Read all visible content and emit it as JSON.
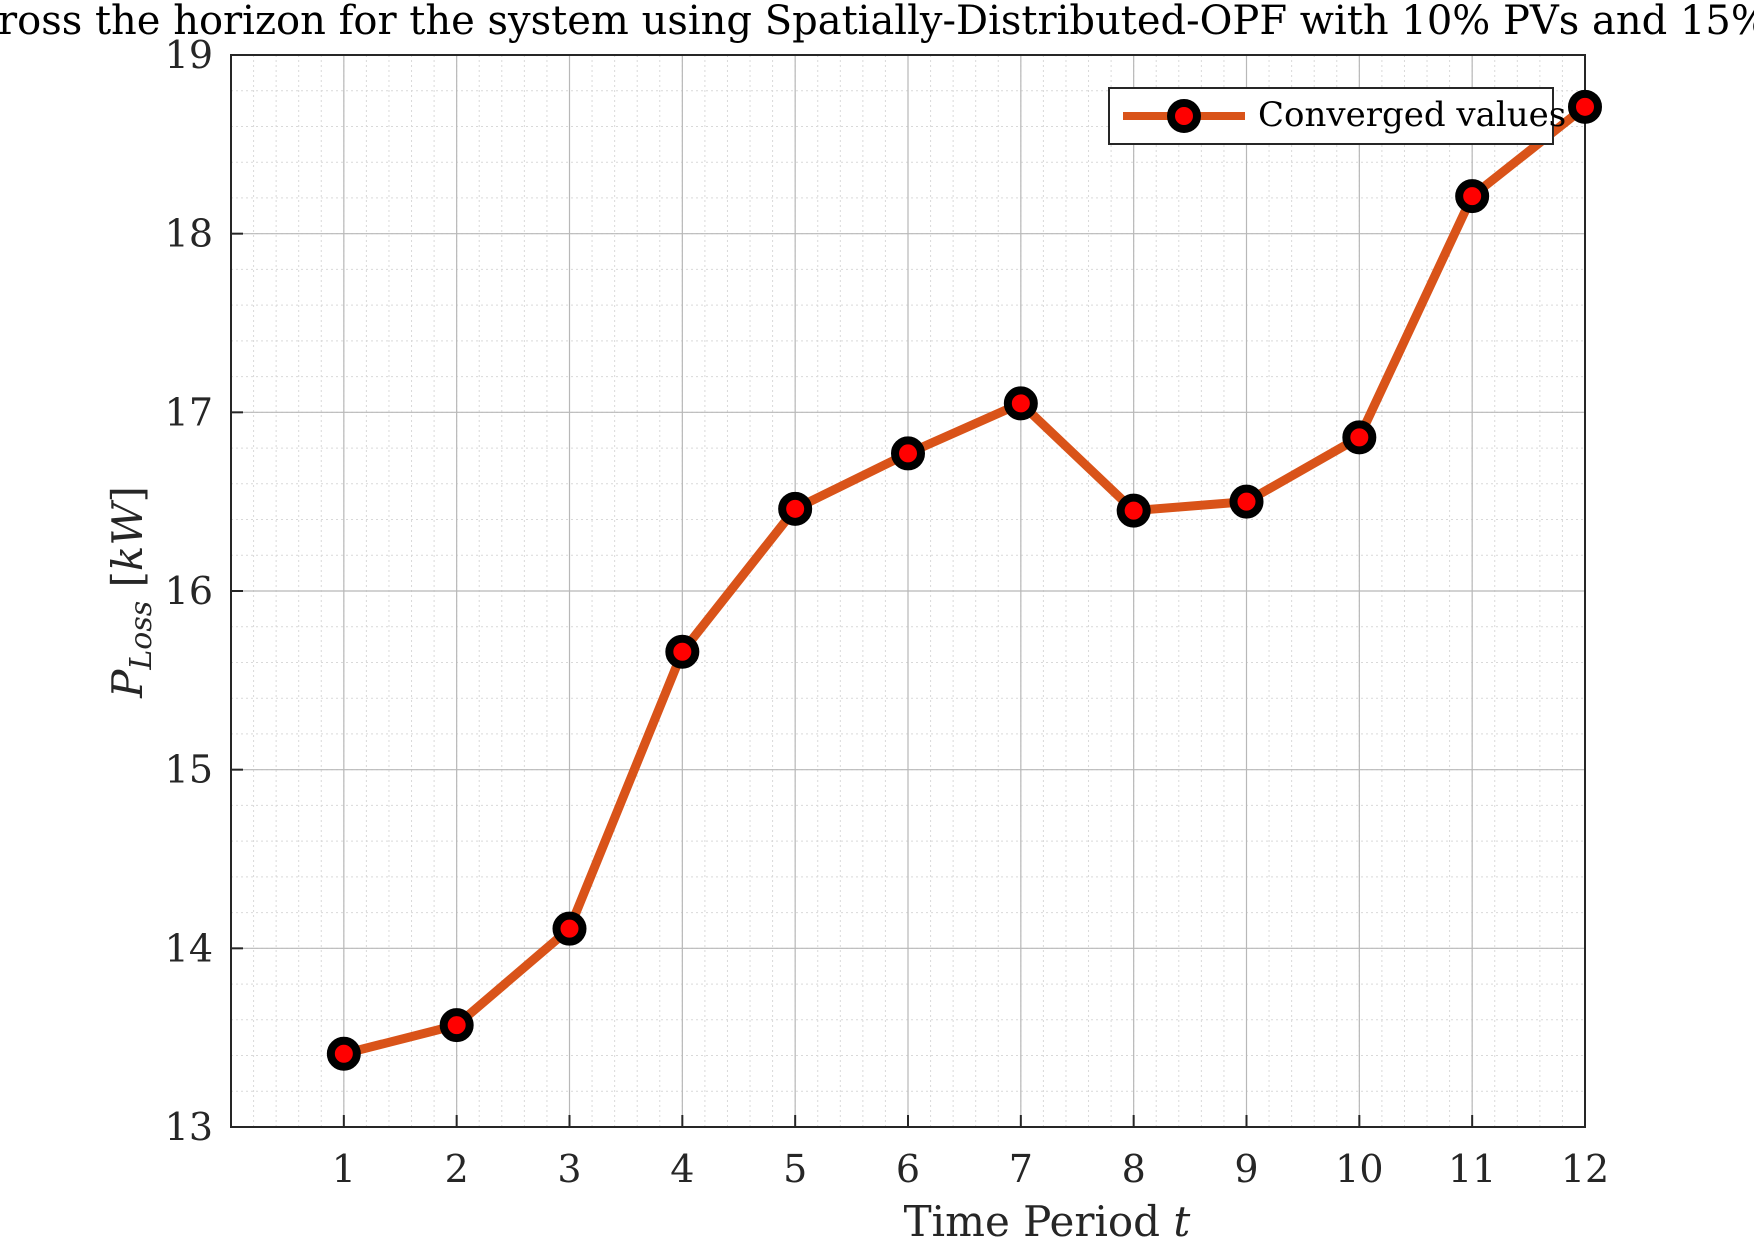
{
  "chart_data": {
    "type": "line",
    "title": "ross the horizon for the system using Spatially-Distributed-OPF with 10% PVs and 15%",
    "xlabel": "Time Period t",
    "xlabel_text": "Time Period ",
    "xlabel_var": "t",
    "ylabel": "P_Loss [kW]",
    "ylabel_main": "P",
    "ylabel_sub": "Loss",
    "ylabel_unit": "kW",
    "x": [
      1,
      2,
      3,
      4,
      5,
      6,
      7,
      8,
      9,
      10,
      11,
      12
    ],
    "xticks": [
      "1",
      "2",
      "3",
      "4",
      "5",
      "6",
      "7",
      "8",
      "9",
      "10",
      "11",
      "12"
    ],
    "xlim": [
      0,
      12
    ],
    "yticks": [
      "13",
      "14",
      "15",
      "16",
      "17",
      "18",
      "19"
    ],
    "ylim": [
      13,
      19
    ],
    "grid": true,
    "minor_grid": true,
    "legend_position": "top-right",
    "series": [
      {
        "name": "Converged values",
        "values": [
          13.41,
          13.57,
          14.11,
          15.66,
          16.46,
          16.77,
          17.05,
          16.45,
          16.5,
          16.86,
          18.21,
          18.71
        ],
        "line_color": "#D95319",
        "marker_edge_color": "#000000",
        "marker_face_color": "#FF0000"
      }
    ]
  }
}
